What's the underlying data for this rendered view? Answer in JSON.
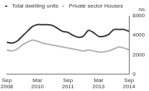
{
  "chart_data": {
    "type": "line",
    "y_label": "no.",
    "categories": [
      "Sep 2008",
      null,
      null,
      null,
      null,
      null,
      "Mar 2010",
      null,
      null,
      null,
      null,
      null,
      "Sep 2011",
      null,
      null,
      null,
      null,
      null,
      "Mar 2013",
      null,
      null,
      null,
      null,
      null,
      "Sep 2014"
    ],
    "series": [
      {
        "name": "Total dwelling units",
        "color": "#333333",
        "values": [
          3300,
          3200,
          3400,
          3900,
          4400,
          4900,
          5100,
          5100,
          5100,
          5000,
          4700,
          4400,
          4300,
          4000,
          3800,
          3900,
          4500,
          4300,
          3900,
          3900,
          4100,
          4600,
          4600,
          4600,
          4400
        ]
      },
      {
        "name": "Private sector Houses",
        "color": "#b0b0b0",
        "values": [
          2500,
          2400,
          2600,
          3000,
          3300,
          3500,
          3400,
          3200,
          3100,
          3000,
          2900,
          2800,
          2700,
          2600,
          2500,
          2400,
          2500,
          2400,
          2300,
          2300,
          2400,
          2600,
          2800,
          2700,
          2500
        ]
      }
    ],
    "ylim": [
      0,
      6000
    ],
    "yticks": [
      0,
      2000,
      4000,
      6000
    ],
    "grid": false,
    "legend": "top-left"
  }
}
